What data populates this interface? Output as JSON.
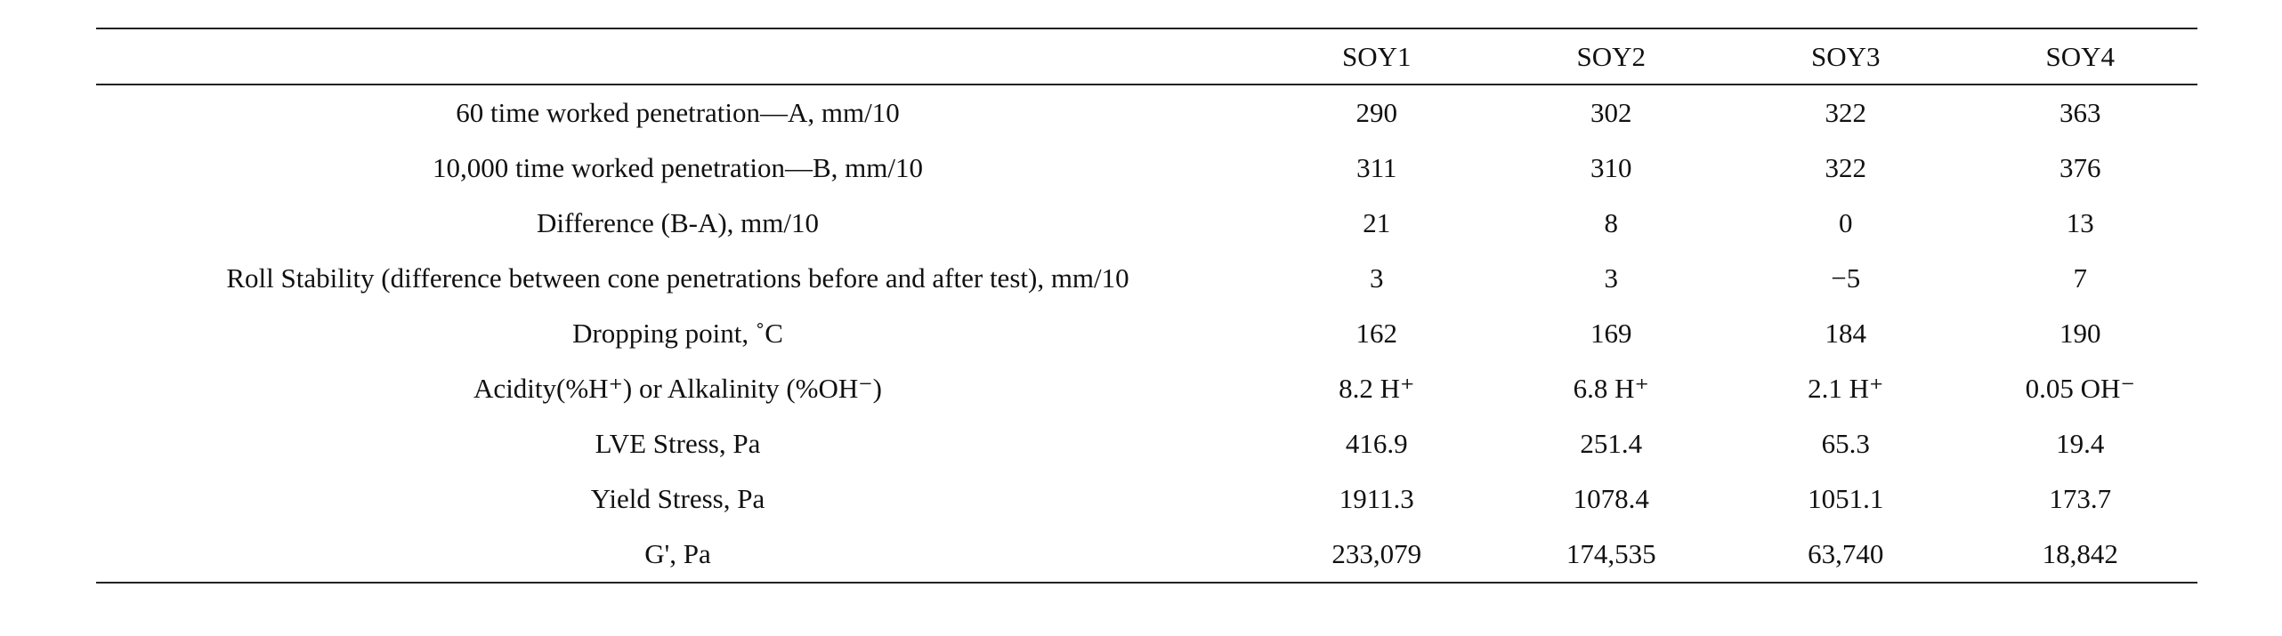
{
  "table": {
    "columns": [
      "SOY1",
      "SOY2",
      "SOY3",
      "SOY4"
    ],
    "rows": [
      {
        "label": "60 time worked penetration—A, mm/10",
        "cells": [
          "290",
          "302",
          "322",
          "363"
        ]
      },
      {
        "label": "10,000 time worked penetration—B, mm/10",
        "cells": [
          "311",
          "310",
          "322",
          "376"
        ]
      },
      {
        "label": "Difference (B-A), mm/10",
        "cells": [
          "21",
          "8",
          "0",
          "13"
        ]
      },
      {
        "label": "Roll Stability (difference between cone penetrations before and after test), mm/10",
        "cells": [
          "3",
          "3",
          "−5",
          "7"
        ]
      },
      {
        "label": "Dropping point, ˚C",
        "cells": [
          "162",
          "169",
          "184",
          "190"
        ]
      },
      {
        "label": "Acidity(%H⁺) or Alkalinity (%OH⁻)",
        "cells": [
          "8.2 H⁺",
          "6.8 H⁺",
          "2.1 H⁺",
          "0.05 OH⁻"
        ]
      },
      {
        "label": "LVE Stress, Pa",
        "cells": [
          "416.9",
          "251.4",
          "65.3",
          "19.4"
        ]
      },
      {
        "label": "Yield Stress, Pa",
        "cells": [
          "1911.3",
          "1078.4",
          "1051.1",
          "173.7"
        ]
      },
      {
        "label": "G', Pa",
        "cells": [
          "233,079",
          "174,535",
          "63,740",
          "18,842"
        ]
      }
    ]
  }
}
